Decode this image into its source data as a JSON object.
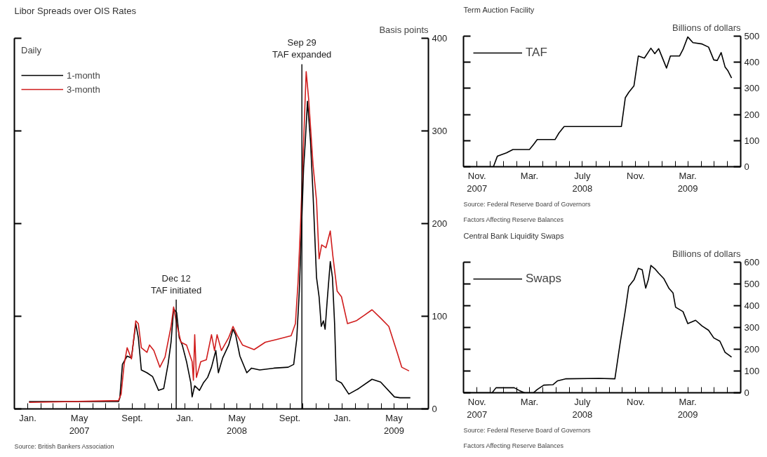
{
  "chart_data": [
    {
      "type": "line",
      "title": "Libor Spreads over OIS Rates",
      "ylabel": "Basis points",
      "legend_title": "Daily",
      "legend": "top left",
      "xlim": [
        "2006-12-01",
        "2009-07-20"
      ],
      "ylim": [
        0,
        400
      ],
      "yticks": [
        0,
        100,
        200,
        300,
        400
      ],
      "xticks": [
        {
          "value": "2007-01",
          "label": "Jan."
        },
        {
          "value": "2007-02",
          "label": null
        },
        {
          "value": "2007-03",
          "label": null
        },
        {
          "value": "2007-04",
          "label": null
        },
        {
          "value": "2007-05",
          "label": "May\n2007"
        },
        {
          "value": "2007-06",
          "label": null
        },
        {
          "value": "2007-07",
          "label": null
        },
        {
          "value": "2007-08",
          "label": null
        },
        {
          "value": "2007-09",
          "label": "Sept."
        },
        {
          "value": "2007-10",
          "label": null
        },
        {
          "value": "2007-11",
          "label": null
        },
        {
          "value": "2007-12",
          "label": null
        },
        {
          "value": "2008-01",
          "label": "Jan."
        },
        {
          "value": "2008-02",
          "label": null
        },
        {
          "value": "2008-03",
          "label": null
        },
        {
          "value": "2008-04",
          "label": null
        },
        {
          "value": "2008-05",
          "label": "May\n2008"
        },
        {
          "value": "2008-06",
          "label": null
        },
        {
          "value": "2008-07",
          "label": null
        },
        {
          "value": "2008-08",
          "label": null
        },
        {
          "value": "2008-09",
          "label": "Sept."
        },
        {
          "value": "2008-10",
          "label": null
        },
        {
          "value": "2008-11",
          "label": null
        },
        {
          "value": "2008-12",
          "label": null
        },
        {
          "value": "2009-01",
          "label": "Jan."
        },
        {
          "value": "2009-02",
          "label": null
        },
        {
          "value": "2009-03",
          "label": null
        },
        {
          "value": "2009-04",
          "label": null
        },
        {
          "value": "2009-05",
          "label": "May\n2009"
        },
        {
          "value": "2009-06",
          "label": null
        }
      ],
      "ref_lines": [
        {
          "axis": "x",
          "value": "2007-12-12",
          "label": "Dec 12\nTAF initiated",
          "color": "#000000"
        },
        {
          "axis": "x",
          "value": "2008-09-29",
          "label": "Sep 29\nTAF expanded",
          "color": "#000000"
        }
      ],
      "annotations": [
        "Source: British Bankers Association"
      ],
      "series": [
        {
          "name": "1-month",
          "color": "#000000",
          "x": [
            "2007-01-04",
            "2007-07-31",
            "2007-08-03",
            "2007-08-09",
            "2007-08-20",
            "2007-08-30",
            "2007-09-09",
            "2007-09-15",
            "2007-09-22",
            "2007-10-05",
            "2007-10-18",
            "2007-11-01",
            "2007-11-13",
            "2007-11-23",
            "2007-11-30",
            "2007-12-06",
            "2007-12-13",
            "2007-12-19",
            "2007-12-26",
            "2008-01-05",
            "2008-01-15",
            "2008-01-18",
            "2008-01-24",
            "2008-02-04",
            "2008-02-13",
            "2008-02-23",
            "2008-03-03",
            "2008-03-13",
            "2008-03-19",
            "2008-03-29",
            "2008-04-12",
            "2008-04-22",
            "2008-04-28",
            "2008-05-08",
            "2008-05-24",
            "2008-06-04",
            "2008-06-23",
            "2008-07-26",
            "2008-08-28",
            "2008-09-10",
            "2008-09-17",
            "2008-09-23",
            "2008-10-03",
            "2008-10-07",
            "2008-10-12",
            "2008-10-19",
            "2008-10-25",
            "2008-11-02",
            "2008-11-08",
            "2008-11-13",
            "2008-11-18",
            "2008-11-22",
            "2008-11-27",
            "2008-12-04",
            "2008-12-09",
            "2008-12-14",
            "2008-12-18",
            "2008-12-30",
            "2009-01-16",
            "2009-02-08",
            "2009-03-11",
            "2009-03-31",
            "2009-05-02",
            "2009-05-15",
            "2009-06-08"
          ],
          "values": [
            8,
            8,
            12,
            48,
            57,
            55,
            92,
            77,
            42,
            39,
            35,
            20,
            22,
            48,
            72,
            108,
            104,
            77,
            69,
            51,
            28,
            13,
            25,
            20,
            28,
            34,
            45,
            63,
            39,
            55,
            69,
            86,
            80,
            57,
            39,
            44,
            42,
            44,
            45,
            48,
            75,
            127,
            260,
            289,
            332,
            289,
            231,
            142,
            121,
            89,
            95,
            86,
            118,
            159,
            142,
            92,
            31,
            28,
            16,
            22,
            32,
            29,
            13,
            12,
            12
          ]
        },
        {
          "name": "3-month",
          "color": "#d01c1c",
          "x": [
            "2007-01-04",
            "2007-07-31",
            "2007-08-06",
            "2007-08-13",
            "2007-08-20",
            "2007-08-30",
            "2007-09-09",
            "2007-09-15",
            "2007-09-22",
            "2007-10-05",
            "2007-10-11",
            "2007-10-21",
            "2007-11-04",
            "2007-11-16",
            "2007-11-30",
            "2007-12-06",
            "2007-12-13",
            "2007-12-23",
            "2008-01-05",
            "2008-01-18",
            "2008-01-21",
            "2008-01-24",
            "2008-01-28",
            "2008-02-07",
            "2008-02-20",
            "2008-03-03",
            "2008-03-10",
            "2008-03-16",
            "2008-03-26",
            "2008-04-12",
            "2008-04-22",
            "2008-05-01",
            "2008-05-14",
            "2008-06-10",
            "2008-07-06",
            "2008-08-02",
            "2008-09-04",
            "2008-09-14",
            "2008-09-20",
            "2008-09-26",
            "2008-10-09",
            "2008-10-15",
            "2008-10-25",
            "2008-11-02",
            "2008-11-08",
            "2008-11-14",
            "2008-11-24",
            "2008-12-04",
            "2008-12-10",
            "2008-12-20",
            "2008-12-30",
            "2009-01-13",
            "2009-02-02",
            "2009-02-21",
            "2009-03-11",
            "2009-03-31",
            "2009-04-19",
            "2009-05-09",
            "2009-05-19",
            "2009-06-05"
          ],
          "values": [
            7,
            9,
            16,
            48,
            66,
            54,
            95,
            92,
            66,
            61,
            69,
            63,
            45,
            56,
            89,
            110,
            92,
            72,
            69,
            51,
            31,
            80,
            34,
            51,
            53,
            80,
            63,
            80,
            63,
            77,
            89,
            80,
            69,
            64,
            72,
            75,
            79,
            92,
            136,
            200,
            364,
            333,
            263,
            225,
            162,
            177,
            174,
            192,
            165,
            127,
            121,
            92,
            95,
            101,
            107,
            98,
            89,
            60,
            45,
            41
          ]
        }
      ]
    },
    {
      "type": "line",
      "title": "Term Auction Facility",
      "ylabel": "Billions of dollars",
      "legend": "top left",
      "xlim": [
        "2007-10-01",
        "2009-07-01"
      ],
      "ylim": [
        0,
        500
      ],
      "yticks": [
        0,
        100,
        200,
        300,
        400,
        500
      ],
      "xticks": [
        {
          "value": "2007-10",
          "label": null
        },
        {
          "value": "2007-11",
          "label": "Nov.\n2007"
        },
        {
          "value": "2007-12",
          "label": null
        },
        {
          "value": "2008-01",
          "label": null
        },
        {
          "value": "2008-02",
          "label": null
        },
        {
          "value": "2008-03",
          "label": "Mar."
        },
        {
          "value": "2008-04",
          "label": null
        },
        {
          "value": "2008-05",
          "label": null
        },
        {
          "value": "2008-06",
          "label": null
        },
        {
          "value": "2008-07",
          "label": "July\n2008"
        },
        {
          "value": "2008-08",
          "label": null
        },
        {
          "value": "2008-09",
          "label": null
        },
        {
          "value": "2008-10",
          "label": null
        },
        {
          "value": "2008-11",
          "label": "Nov."
        },
        {
          "value": "2008-12",
          "label": null
        },
        {
          "value": "2009-01",
          "label": null
        },
        {
          "value": "2009-02",
          "label": null
        },
        {
          "value": "2009-03",
          "label": "Mar.\n2009"
        },
        {
          "value": "2009-04",
          "label": null
        },
        {
          "value": "2009-05",
          "label": null
        },
        {
          "value": "2009-06",
          "label": null
        }
      ],
      "annotations": [
        "Source: Federal Reserve Board of Governors",
        "Factors Affecting Reserve Balances"
      ],
      "series": [
        {
          "name": "TAF",
          "color": "#000000",
          "x": [
            "2007-10-01",
            "2007-12-09",
            "2007-12-18",
            "2008-01-08",
            "2008-01-23",
            "2008-03-01",
            "2008-03-10",
            "2008-03-19",
            "2008-04-29",
            "2008-05-08",
            "2008-05-20",
            "2008-09-29",
            "2008-10-08",
            "2008-10-16",
            "2008-10-28",
            "2008-11-07",
            "2008-11-21",
            "2008-12-06",
            "2008-12-15",
            "2008-12-24",
            "2009-01-11",
            "2009-01-20",
            "2009-02-10",
            "2009-02-18",
            "2009-03-01",
            "2009-03-13",
            "2009-04-03",
            "2009-04-18",
            "2009-04-30",
            "2009-05-08",
            "2009-05-17",
            "2009-05-26",
            "2009-06-01",
            "2009-06-10"
          ],
          "values": [
            0,
            0,
            40,
            53,
            66,
            66,
            84,
            104,
            104,
            129,
            154,
            154,
            264,
            285,
            310,
            424,
            416,
            454,
            433,
            452,
            378,
            424,
            424,
            449,
            497,
            475,
            470,
            458,
            409,
            407,
            437,
            382,
            369,
            340
          ]
        }
      ]
    },
    {
      "type": "line",
      "title": "Central Bank Liquidity Swaps",
      "ylabel": "Billions of dollars",
      "legend": "top left",
      "xlim": [
        "2007-10-01",
        "2009-07-01"
      ],
      "ylim": [
        0,
        600
      ],
      "yticks": [
        0,
        100,
        200,
        300,
        400,
        500,
        600
      ],
      "xticks": [
        {
          "value": "2007-10",
          "label": null
        },
        {
          "value": "2007-11",
          "label": "Nov.\n2007"
        },
        {
          "value": "2007-12",
          "label": null
        },
        {
          "value": "2008-01",
          "label": null
        },
        {
          "value": "2008-02",
          "label": null
        },
        {
          "value": "2008-03",
          "label": "Mar."
        },
        {
          "value": "2008-04",
          "label": null
        },
        {
          "value": "2008-05",
          "label": null
        },
        {
          "value": "2008-06",
          "label": null
        },
        {
          "value": "2008-07",
          "label": "July\n2008"
        },
        {
          "value": "2008-08",
          "label": null
        },
        {
          "value": "2008-09",
          "label": null
        },
        {
          "value": "2008-10",
          "label": null
        },
        {
          "value": "2008-11",
          "label": "Nov."
        },
        {
          "value": "2008-12",
          "label": null
        },
        {
          "value": "2009-01",
          "label": null
        },
        {
          "value": "2009-02",
          "label": null
        },
        {
          "value": "2009-03",
          "label": "Mar.\n2009"
        },
        {
          "value": "2009-04",
          "label": null
        },
        {
          "value": "2009-05",
          "label": null
        },
        {
          "value": "2009-06",
          "label": null
        }
      ],
      "annotations": [
        "Source: Federal Reserve Board of Governors",
        "Factors Affecting Reserve Balances"
      ],
      "series": [
        {
          "name": "Swaps",
          "color": "#000000",
          "x": [
            "2007-10-01",
            "2007-12-06",
            "2007-12-15",
            "2008-01-26",
            "2008-02-07",
            "2008-02-19",
            "2008-03-10",
            "2008-03-19",
            "2008-04-03",
            "2008-04-24",
            "2008-05-05",
            "2008-05-23",
            "2008-08-09",
            "2008-09-14",
            "2008-09-26",
            "2008-10-08",
            "2008-10-16",
            "2008-10-28",
            "2008-11-07",
            "2008-11-16",
            "2008-11-24",
            "2008-11-30",
            "2008-12-06",
            "2008-12-15",
            "2008-12-24",
            "2009-01-05",
            "2009-01-17",
            "2009-01-26",
            "2009-02-01",
            "2009-02-18",
            "2009-03-01",
            "2009-03-19",
            "2009-04-03",
            "2009-04-18",
            "2009-04-30",
            "2009-05-14",
            "2009-05-26",
            "2009-06-10"
          ],
          "values": [
            0,
            0,
            23,
            23,
            10,
            0,
            0,
            15,
            35,
            37,
            55,
            64,
            66,
            64,
            227,
            378,
            489,
            519,
            572,
            565,
            481,
            519,
            585,
            570,
            549,
            524,
            479,
            459,
            393,
            373,
            318,
            333,
            307,
            287,
            252,
            237,
            186,
            164
          ]
        }
      ]
    }
  ]
}
